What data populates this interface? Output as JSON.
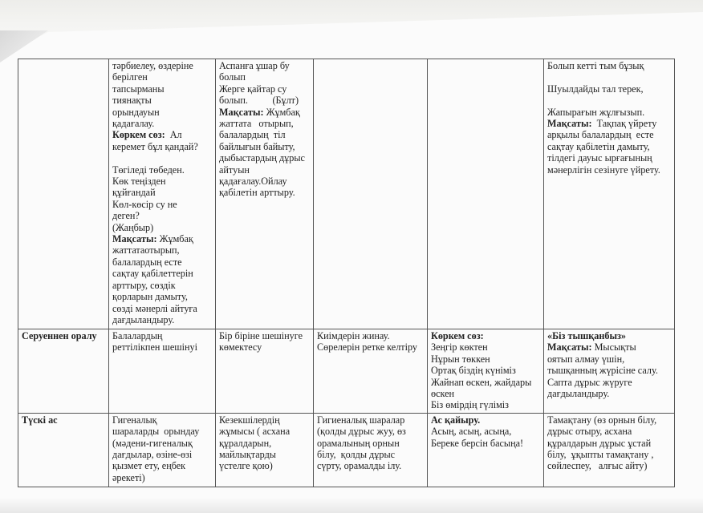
{
  "rows": [
    {
      "cells": [
        [],
        [
          [
            {
              "t": "тәрбиелеу, өздеріне"
            }
          ],
          [
            {
              "t": "берілген"
            }
          ],
          [
            {
              "t": "тапсырманы"
            }
          ],
          [
            {
              "t": "тиянақты"
            }
          ],
          [
            {
              "t": "орындауын"
            }
          ],
          [
            {
              "t": "қадағалау."
            }
          ],
          [
            {
              "b": "Көркем сөз:",
              "t": "  Ал"
            }
          ],
          [
            {
              "t": "керемет бұл қандай?"
            }
          ],
          [],
          [
            {
              "t": "Төгіледі төбеден."
            }
          ],
          [
            {
              "t": "Көк теңізден"
            }
          ],
          [
            {
              "t": "құйғандай"
            }
          ],
          [
            {
              "t": "Көл-көсір су не"
            }
          ],
          [
            {
              "t": "деген?"
            }
          ],
          [
            {
              "t": "(Жаңбыр)"
            }
          ],
          [
            {
              "b": "Мақсаты:",
              "t": " Жұмбақ"
            }
          ],
          [
            {
              "t": "жаттатаотырып,"
            }
          ],
          [
            {
              "t": "балалардың есте"
            }
          ],
          [
            {
              "t": "сақтау қабілеттерін"
            }
          ],
          [
            {
              "t": "арттыру, сөздік"
            }
          ],
          [
            {
              "t": "қорларын дамыту,"
            }
          ],
          [
            {
              "t": "сөзді мәнерлі айтуға"
            }
          ],
          [
            {
              "t": "дағдыландыру."
            }
          ]
        ],
        [
          [
            {
              "t": "Аспанға ұшар бу"
            }
          ],
          [
            {
              "t": "болып"
            }
          ],
          [
            {
              "t": "Жерге қайтар су"
            }
          ],
          [
            {
              "t": "болып.          (Бұлт)"
            }
          ],
          [
            {
              "b": "Мақсаты:",
              "t": " Жұмбақ"
            }
          ],
          [
            {
              "t": "жаттата   отырып,"
            }
          ],
          [
            {
              "t": "балалардың  тіл"
            }
          ],
          [
            {
              "t": "байлығын байыту,"
            }
          ],
          [
            {
              "t": "дыбыстардың дұрыс"
            }
          ],
          [
            {
              "t": "айтуын"
            }
          ],
          [
            {
              "t": "қадағалау.Ойлау"
            }
          ],
          [
            {
              "t": "қабілетін арттыру."
            }
          ]
        ],
        [],
        [],
        [
          [
            {
              "t": "Болып кетті тым бұзық"
            }
          ],
          [],
          [
            {
              "t": "Шуылдайды тал терек,"
            }
          ],
          [],
          [
            {
              "t": "Жапырағын жұлғызып."
            }
          ],
          [
            {
              "b": "Мақсаты:",
              "t": "  Тақпақ үйрету"
            }
          ],
          [
            {
              "t": "арқылы балалардың  есте"
            }
          ],
          [
            {
              "t": "сақтау қабілетін дамыту,"
            }
          ],
          [
            {
              "t": "тілдегі дауыс ырғағының"
            }
          ],
          [
            {
              "t": "мәнерлігін сезінуге үйрету."
            }
          ]
        ]
      ]
    },
    {
      "cells": [
        [
          [
            {
              "b": "Серуеннен оралу"
            }
          ]
        ],
        [
          [
            {
              "t": "Балалардың"
            }
          ],
          [
            {
              "t": "реттілікпен шешінуі"
            }
          ]
        ],
        [
          [
            {
              "t": "Бір біріне шешінуге"
            }
          ],
          [
            {
              "t": "көмектесу"
            }
          ]
        ],
        [
          [
            {
              "t": "Киімдерін жинау."
            }
          ],
          [
            {
              "t": "Сөрелерін ретке келтіру"
            }
          ]
        ],
        [
          [
            {
              "b": "Көркем сөз:"
            }
          ],
          [
            {
              "t": "Зеңгір көктен"
            }
          ],
          [
            {
              "t": "Нұрын төккен"
            }
          ],
          [
            {
              "t": "Ортақ біздің күніміз"
            }
          ],
          [
            {
              "t": "Жайнап өскен, жайдары"
            }
          ],
          [
            {
              "t": "өскен"
            }
          ],
          [
            {
              "t": "Біз өмірдің гүліміз"
            }
          ]
        ],
        [
          [
            {
              "b": "«Біз тышқанбыз»"
            }
          ],
          [
            {
              "b": "Мақсаты:",
              "t": " Мысықты"
            }
          ],
          [
            {
              "t": "оятып алмау үшін,"
            }
          ],
          [
            {
              "t": "тышқанның жүрісіне салу."
            }
          ],
          [
            {
              "t": "Сапта дұрыс жүруге"
            }
          ],
          [
            {
              "t": "дағдыландыру."
            }
          ]
        ]
      ]
    },
    {
      "cells": [
        [
          [
            {
              "b": "Түскі ас"
            }
          ]
        ],
        [
          [
            {
              "t": "Гигеналық"
            }
          ],
          [
            {
              "t": "шараларды  орындау"
            }
          ],
          [
            {
              "t": "(мәдени-гигеналық"
            }
          ],
          [
            {
              "t": "дағдылар, өзіне-өзі"
            }
          ],
          [
            {
              "t": "қызмет ету, еңбек"
            }
          ],
          [
            {
              "t": "әрекеті)"
            }
          ]
        ],
        [
          [
            {
              "t": "Кезекшілердің"
            }
          ],
          [
            {
              "t": "жұмысы ( асхана"
            }
          ],
          [
            {
              "t": "құралдарын,"
            }
          ],
          [
            {
              "t": "майлықтарды"
            }
          ],
          [
            {
              "t": "үстелге қою)"
            }
          ]
        ],
        [
          [
            {
              "t": "Гигиеналық шаралар"
            }
          ],
          [
            {
              "t": "(қолды дұрыс жуу, өз"
            }
          ],
          [
            {
              "t": "орамалының орнын"
            }
          ],
          [
            {
              "t": "білу,  қолды дұрыс"
            }
          ],
          [
            {
              "t": "сүрту, орамалды ілу."
            }
          ]
        ],
        [
          [
            {
              "b": "Ас қайыру."
            }
          ],
          [
            {
              "t": "Асың, асың, асыңа,"
            }
          ],
          [
            {
              "t": "Береке берсін басыңа!"
            }
          ]
        ],
        [
          [
            {
              "t": "Тамақтану (өз орнын білу,"
            }
          ],
          [
            {
              "t": "дұрыс отыру, асхана"
            }
          ],
          [
            {
              "t": "құралдарын дұрыс ұстай"
            }
          ],
          [
            {
              "t": "білу,  ұқыпты тамақтану ,"
            }
          ],
          [
            {
              "t": "сөйлеспеу,   алғыс айту)"
            }
          ]
        ]
      ]
    }
  ]
}
